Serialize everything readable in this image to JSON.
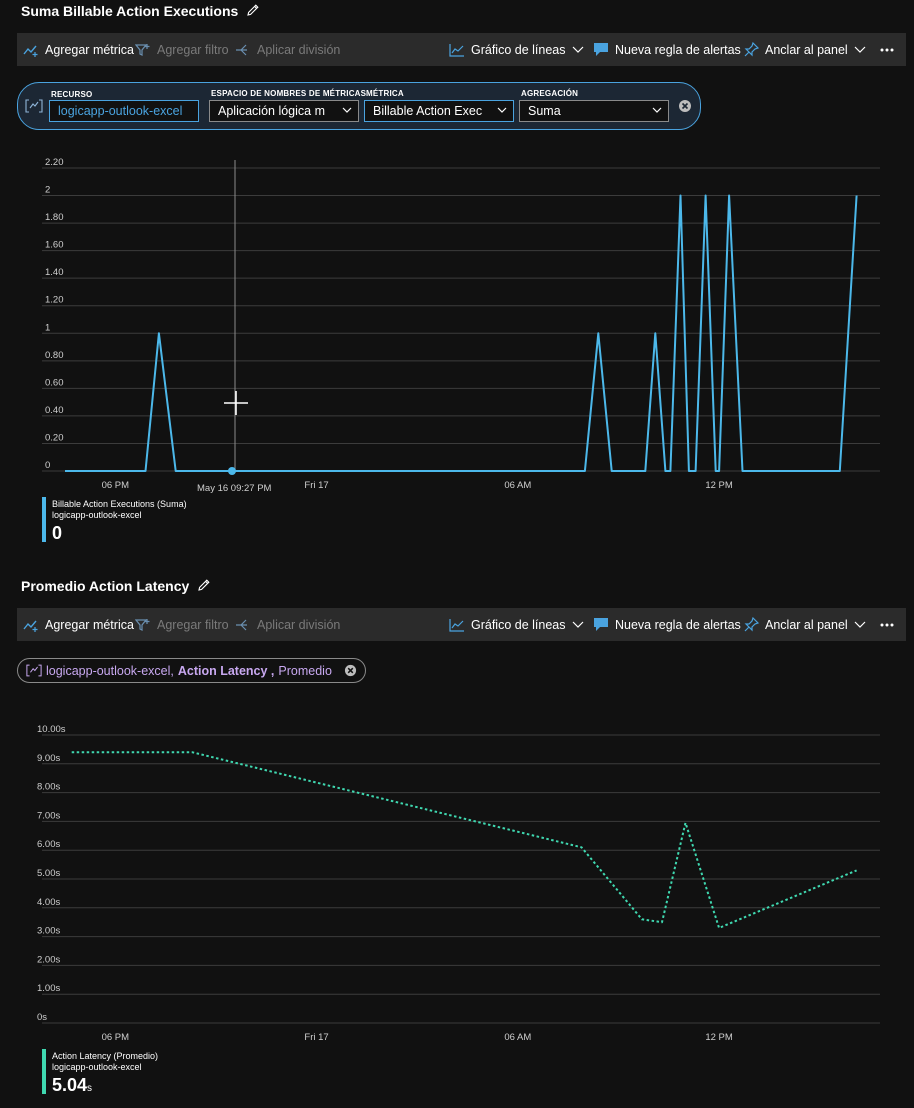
{
  "chart1": {
    "title": "Suma Billable Action Executions",
    "toolbar": {
      "add_metric": "Agregar métrica",
      "add_filter": "Agregar filtro",
      "apply_split": "Aplicar división",
      "line_chart": "Gráfico de líneas",
      "new_alert": "Nueva regla de alertas",
      "pin": "Anclar al panel"
    },
    "picker": {
      "resource_label": "RECURSO",
      "resource_value": "logicapp-outlook-excel",
      "namespace_label": "ESPACIO DE NOMBRES DE MÉTRICAS",
      "namespace_value": "Aplicación lógica m",
      "metric_label": "MÉTRICA",
      "metric_value": "Billable Action Exec",
      "aggregation_label": "AGREGACIÓN",
      "aggregation_value": "Suma"
    },
    "hover_label": "May 16 09:27 PM",
    "legend": {
      "name": "Billable Action Executions (Suma)",
      "resource": "logicapp-outlook-excel",
      "value": "0"
    },
    "chart_data": {
      "type": "line",
      "series_color": "#4cb8ea",
      "ylim": [
        0,
        2.2
      ],
      "yticks": [
        "0",
        "0.20",
        "0.40",
        "0.60",
        "0.80",
        "1",
        "1.20",
        "1.40",
        "1.60",
        "1.80",
        "2",
        "2.20"
      ],
      "ytick_values": [
        0,
        0.2,
        0.4,
        0.6,
        0.8,
        1,
        1.2,
        1.4,
        1.6,
        1.8,
        2,
        2.2
      ],
      "xticks": [
        "06 PM",
        "Fri 17",
        "06 AM",
        "12 PM"
      ],
      "xtick_hours": [
        18,
        24,
        30,
        36
      ],
      "xlim_hours": [
        16.5,
        40.5
      ],
      "series": [
        {
          "points": [
            [
              16.5,
              0
            ],
            [
              18.9,
              0
            ],
            [
              19.3,
              1
            ],
            [
              19.8,
              0
            ],
            [
              32.0,
              0
            ],
            [
              32.4,
              1
            ],
            [
              32.8,
              0
            ],
            [
              33.8,
              0
            ],
            [
              34.1,
              1
            ],
            [
              34.4,
              0
            ],
            [
              34.55,
              0
            ],
            [
              34.85,
              2
            ],
            [
              35.1,
              0
            ],
            [
              35.3,
              0
            ],
            [
              35.6,
              2
            ],
            [
              35.9,
              0
            ],
            [
              36.0,
              0
            ],
            [
              36.3,
              2
            ],
            [
              36.7,
              0
            ],
            [
              39.6,
              0
            ],
            [
              40.1,
              2
            ]
          ]
        }
      ]
    }
  },
  "chart2": {
    "title": "Promedio Action Latency",
    "toolbar": {
      "add_metric": "Agregar métrica",
      "add_filter": "Agregar filtro",
      "apply_split": "Aplicar división",
      "line_chart": "Gráfico de líneas",
      "new_alert": "Nueva regla de alertas",
      "pin": "Anclar al panel"
    },
    "chip": {
      "resource": "logicapp-outlook-excel,",
      "metric": "Action Latency ,",
      "aggregation": "Promedio"
    },
    "legend": {
      "name": "Action Latency (Promedio)",
      "resource": "logicapp-outlook-excel",
      "value": "5.04",
      "unit": "s"
    },
    "chart_data": {
      "type": "line",
      "series_color": "#3fd8b0",
      "ylim": [
        0,
        10
      ],
      "yticks": [
        "0s",
        "1.00s",
        "2.00s",
        "3.00s",
        "4.00s",
        "5.00s",
        "6.00s",
        "7.00s",
        "8.00s",
        "9.00s",
        "10.00s"
      ],
      "ytick_values": [
        0,
        1,
        2,
        3,
        4,
        5,
        6,
        7,
        8,
        9,
        10
      ],
      "xticks": [
        "06 PM",
        "Fri 17",
        "06 AM",
        "12 PM"
      ],
      "xtick_hours": [
        18,
        24,
        30,
        36
      ],
      "xlim_hours": [
        16.5,
        40.5
      ],
      "series": [
        {
          "points": [
            [
              16.7,
              9.4
            ],
            [
              20.3,
              9.4
            ],
            [
              31.9,
              6.1
            ],
            [
              33.7,
              3.6
            ],
            [
              34.3,
              3.5
            ],
            [
              35.0,
              6.95
            ],
            [
              36.0,
              3.3
            ],
            [
              36.2,
              3.4
            ],
            [
              40.1,
              5.3
            ]
          ]
        }
      ]
    }
  }
}
